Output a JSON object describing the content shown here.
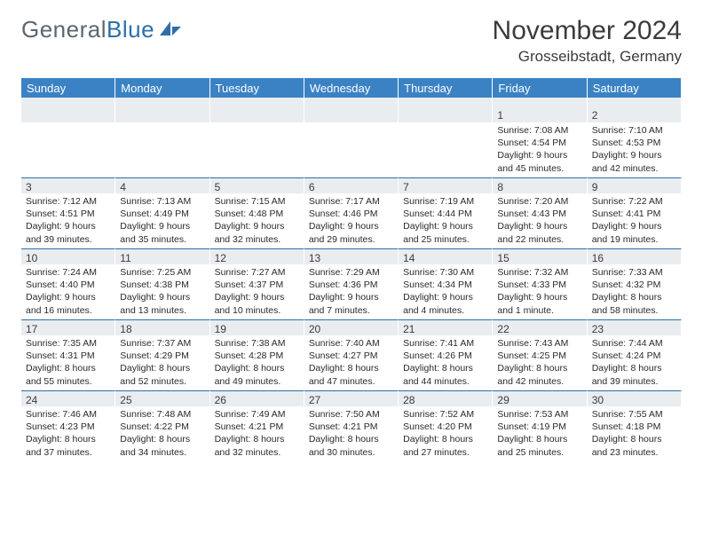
{
  "brand": {
    "part1": "General",
    "part2": "Blue"
  },
  "title": "November 2024",
  "location": "Grosseibstadt, Germany",
  "header_bg": "#3b82c4",
  "header_fg": "#ffffff",
  "daynum_bg": "#e9edef",
  "daynum_border_top": "#2f6fa7",
  "dayHeaders": [
    "Sunday",
    "Monday",
    "Tuesday",
    "Wednesday",
    "Thursday",
    "Friday",
    "Saturday"
  ],
  "weeks": [
    [
      null,
      null,
      null,
      null,
      null,
      {
        "n": "1",
        "sr": "7:08 AM",
        "ss": "4:54 PM",
        "dl": "9 hours and 45 minutes."
      },
      {
        "n": "2",
        "sr": "7:10 AM",
        "ss": "4:53 PM",
        "dl": "9 hours and 42 minutes."
      }
    ],
    [
      {
        "n": "3",
        "sr": "7:12 AM",
        "ss": "4:51 PM",
        "dl": "9 hours and 39 minutes."
      },
      {
        "n": "4",
        "sr": "7:13 AM",
        "ss": "4:49 PM",
        "dl": "9 hours and 35 minutes."
      },
      {
        "n": "5",
        "sr": "7:15 AM",
        "ss": "4:48 PM",
        "dl": "9 hours and 32 minutes."
      },
      {
        "n": "6",
        "sr": "7:17 AM",
        "ss": "4:46 PM",
        "dl": "9 hours and 29 minutes."
      },
      {
        "n": "7",
        "sr": "7:19 AM",
        "ss": "4:44 PM",
        "dl": "9 hours and 25 minutes."
      },
      {
        "n": "8",
        "sr": "7:20 AM",
        "ss": "4:43 PM",
        "dl": "9 hours and 22 minutes."
      },
      {
        "n": "9",
        "sr": "7:22 AM",
        "ss": "4:41 PM",
        "dl": "9 hours and 19 minutes."
      }
    ],
    [
      {
        "n": "10",
        "sr": "7:24 AM",
        "ss": "4:40 PM",
        "dl": "9 hours and 16 minutes."
      },
      {
        "n": "11",
        "sr": "7:25 AM",
        "ss": "4:38 PM",
        "dl": "9 hours and 13 minutes."
      },
      {
        "n": "12",
        "sr": "7:27 AM",
        "ss": "4:37 PM",
        "dl": "9 hours and 10 minutes."
      },
      {
        "n": "13",
        "sr": "7:29 AM",
        "ss": "4:36 PM",
        "dl": "9 hours and 7 minutes."
      },
      {
        "n": "14",
        "sr": "7:30 AM",
        "ss": "4:34 PM",
        "dl": "9 hours and 4 minutes."
      },
      {
        "n": "15",
        "sr": "7:32 AM",
        "ss": "4:33 PM",
        "dl": "9 hours and 1 minute."
      },
      {
        "n": "16",
        "sr": "7:33 AM",
        "ss": "4:32 PM",
        "dl": "8 hours and 58 minutes."
      }
    ],
    [
      {
        "n": "17",
        "sr": "7:35 AM",
        "ss": "4:31 PM",
        "dl": "8 hours and 55 minutes."
      },
      {
        "n": "18",
        "sr": "7:37 AM",
        "ss": "4:29 PM",
        "dl": "8 hours and 52 minutes."
      },
      {
        "n": "19",
        "sr": "7:38 AM",
        "ss": "4:28 PM",
        "dl": "8 hours and 49 minutes."
      },
      {
        "n": "20",
        "sr": "7:40 AM",
        "ss": "4:27 PM",
        "dl": "8 hours and 47 minutes."
      },
      {
        "n": "21",
        "sr": "7:41 AM",
        "ss": "4:26 PM",
        "dl": "8 hours and 44 minutes."
      },
      {
        "n": "22",
        "sr": "7:43 AM",
        "ss": "4:25 PM",
        "dl": "8 hours and 42 minutes."
      },
      {
        "n": "23",
        "sr": "7:44 AM",
        "ss": "4:24 PM",
        "dl": "8 hours and 39 minutes."
      }
    ],
    [
      {
        "n": "24",
        "sr": "7:46 AM",
        "ss": "4:23 PM",
        "dl": "8 hours and 37 minutes."
      },
      {
        "n": "25",
        "sr": "7:48 AM",
        "ss": "4:22 PM",
        "dl": "8 hours and 34 minutes."
      },
      {
        "n": "26",
        "sr": "7:49 AM",
        "ss": "4:21 PM",
        "dl": "8 hours and 32 minutes."
      },
      {
        "n": "27",
        "sr": "7:50 AM",
        "ss": "4:21 PM",
        "dl": "8 hours and 30 minutes."
      },
      {
        "n": "28",
        "sr": "7:52 AM",
        "ss": "4:20 PM",
        "dl": "8 hours and 27 minutes."
      },
      {
        "n": "29",
        "sr": "7:53 AM",
        "ss": "4:19 PM",
        "dl": "8 hours and 25 minutes."
      },
      {
        "n": "30",
        "sr": "7:55 AM",
        "ss": "4:18 PM",
        "dl": "8 hours and 23 minutes."
      }
    ]
  ],
  "labels": {
    "sunrise": "Sunrise:",
    "sunset": "Sunset:",
    "daylight": "Daylight:"
  }
}
